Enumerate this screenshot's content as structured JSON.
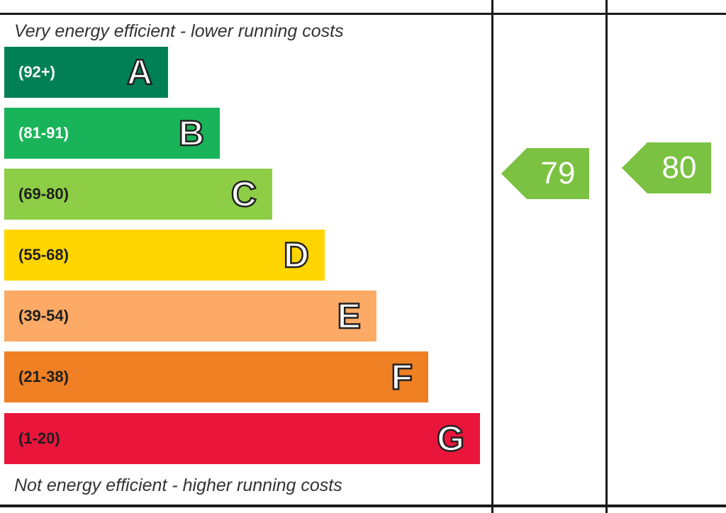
{
  "captions": {
    "top": "Very energy efficient - lower running costs",
    "bottom": "Not energy efficient - higher running costs"
  },
  "bands": [
    {
      "letter": "A",
      "range": "(92+)",
      "color": "#008054",
      "text_color": "#ffffff"
    },
    {
      "letter": "B",
      "range": "(81-91)",
      "color": "#19b459",
      "text_color": "#ffffff"
    },
    {
      "letter": "C",
      "range": "(69-80)",
      "color": "#8dce46",
      "text_color": "#1e1e1e"
    },
    {
      "letter": "D",
      "range": "(55-68)",
      "color": "#ffd500",
      "text_color": "#1e1e1e"
    },
    {
      "letter": "E",
      "range": "(39-54)",
      "color": "#fcaa65",
      "text_color": "#1e1e1e"
    },
    {
      "letter": "F",
      "range": "(21-38)",
      "color": "#ef8023",
      "text_color": "#1e1e1e"
    },
    {
      "letter": "G",
      "range": "(1-20)",
      "color": "#e9153b",
      "text_color": "#1e1e1e"
    }
  ],
  "ratings": {
    "current": {
      "value": "79",
      "color": "#7bc142"
    },
    "potential": {
      "value": "80",
      "color": "#7bc142"
    }
  }
}
